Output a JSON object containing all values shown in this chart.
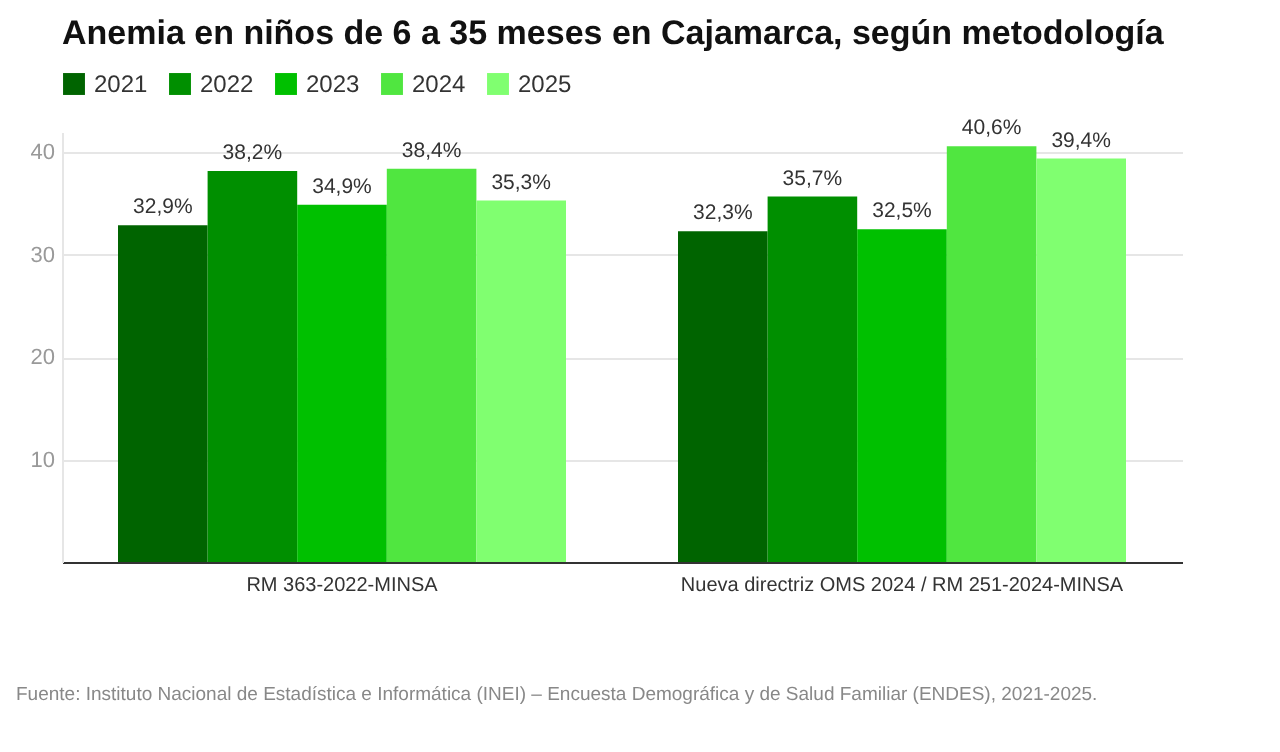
{
  "chart_data": {
    "type": "bar",
    "title": "Anemia en niños de 6 a 35 meses en Cajamarca, según metodología",
    "categories": [
      "RM 363-2022-MINSA",
      "Nueva directriz OMS 2024 / RM 251-2024-MINSA"
    ],
    "series": [
      {
        "name": "2021",
        "color": "#006400",
        "values": [
          32.9,
          32.3
        ],
        "value_labels": [
          "32,9%",
          "32,3%"
        ]
      },
      {
        "name": "2022",
        "color": "#008f00",
        "values": [
          38.2,
          35.7
        ],
        "value_labels": [
          "38,2%",
          "35,7%"
        ]
      },
      {
        "name": "2023",
        "color": "#00c000",
        "values": [
          34.9,
          32.5
        ],
        "value_labels": [
          "34,9%",
          "32,5%"
        ]
      },
      {
        "name": "2024",
        "color": "#50e640",
        "values": [
          38.4,
          40.6
        ],
        "value_labels": [
          "38,4%",
          "40,6%"
        ]
      },
      {
        "name": "2025",
        "color": "#80ff70",
        "values": [
          35.3,
          39.4
        ],
        "value_labels": [
          "35,3%",
          "39,4%"
        ]
      }
    ],
    "ylim": [
      0,
      42
    ],
    "yticks": [
      10,
      20,
      30,
      40
    ],
    "grid": "y",
    "legend": "top left",
    "annotations": [
      "Fuente: Instituto Nacional de Estadística e Informática (INEI) – Encuesta Demográfica y de Salud Familiar (ENDES), 2021-2025."
    ]
  }
}
